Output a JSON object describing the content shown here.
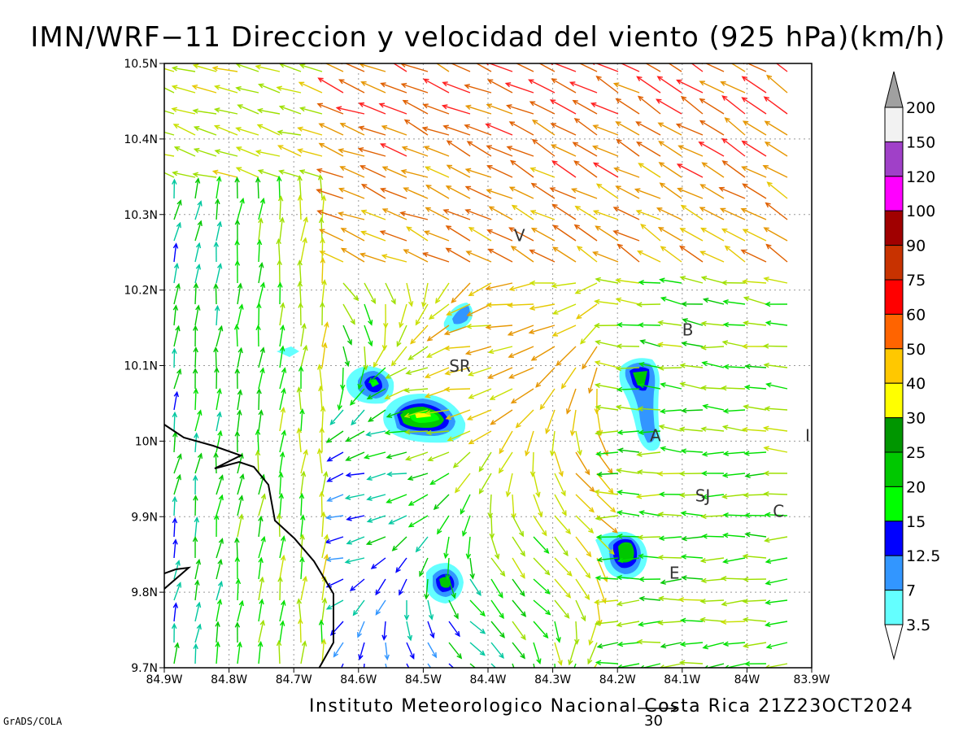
{
  "title": "IMN/WRF−11 Direccion y velocidad del viento (925 hPa)(km/h)",
  "footer": "Instituto Meteorologico Nacional Costa Rica  21Z23OCT2024",
  "credit": "GrADS/COLA",
  "reference_vector": {
    "value": "30"
  },
  "chart_data": {
    "type": "map",
    "x_axis": {
      "ticks": [
        "84.9W",
        "84.8W",
        "84.7W",
        "84.6W",
        "84.5W",
        "84.4W",
        "84.3W",
        "84.2W",
        "84.1W",
        "84W",
        "83.9W"
      ],
      "range": [
        -84.9,
        -83.9
      ]
    },
    "y_axis": {
      "ticks": [
        "10.5N",
        "10.4N",
        "10.3N",
        "10.2N",
        "10.1N",
        "10N",
        "9.9N",
        "9.8N",
        "9.7N"
      ],
      "range": [
        9.7,
        10.5
      ]
    },
    "grid": true,
    "legend_position": "right",
    "colorbar": {
      "labels": [
        "200",
        "150",
        "120",
        "100",
        "90",
        "75",
        "60",
        "50",
        "40",
        "30",
        "25",
        "20",
        "15",
        "12.5",
        "7",
        "3.5"
      ],
      "colors": [
        "#f2f2f2",
        "#a040c8",
        "#ff00ff",
        "#a00000",
        "#c83200",
        "#ff0000",
        "#ff6400",
        "#ffc800",
        "#ffff00",
        "#009600",
        "#00c800",
        "#00ff00",
        "#0000ff",
        "#3296ff",
        "#64ffff"
      ],
      "over_color": "#a0a0a0"
    },
    "place_labels": [
      {
        "text": "V",
        "lon": -84.36,
        "lat": 10.265
      },
      {
        "text": "SR",
        "lon": -84.46,
        "lat": 10.092
      },
      {
        "text": "B",
        "lon": -84.1,
        "lat": 10.14
      },
      {
        "text": "A",
        "lon": -84.15,
        "lat": 10.0
      },
      {
        "text": "I",
        "lon": -83.91,
        "lat": 10.0
      },
      {
        "text": "SJ",
        "lon": -84.08,
        "lat": 9.92
      },
      {
        "text": "C",
        "lon": -83.96,
        "lat": 9.9
      },
      {
        "text": "E",
        "lon": -84.12,
        "lat": 9.818
      }
    ]
  }
}
